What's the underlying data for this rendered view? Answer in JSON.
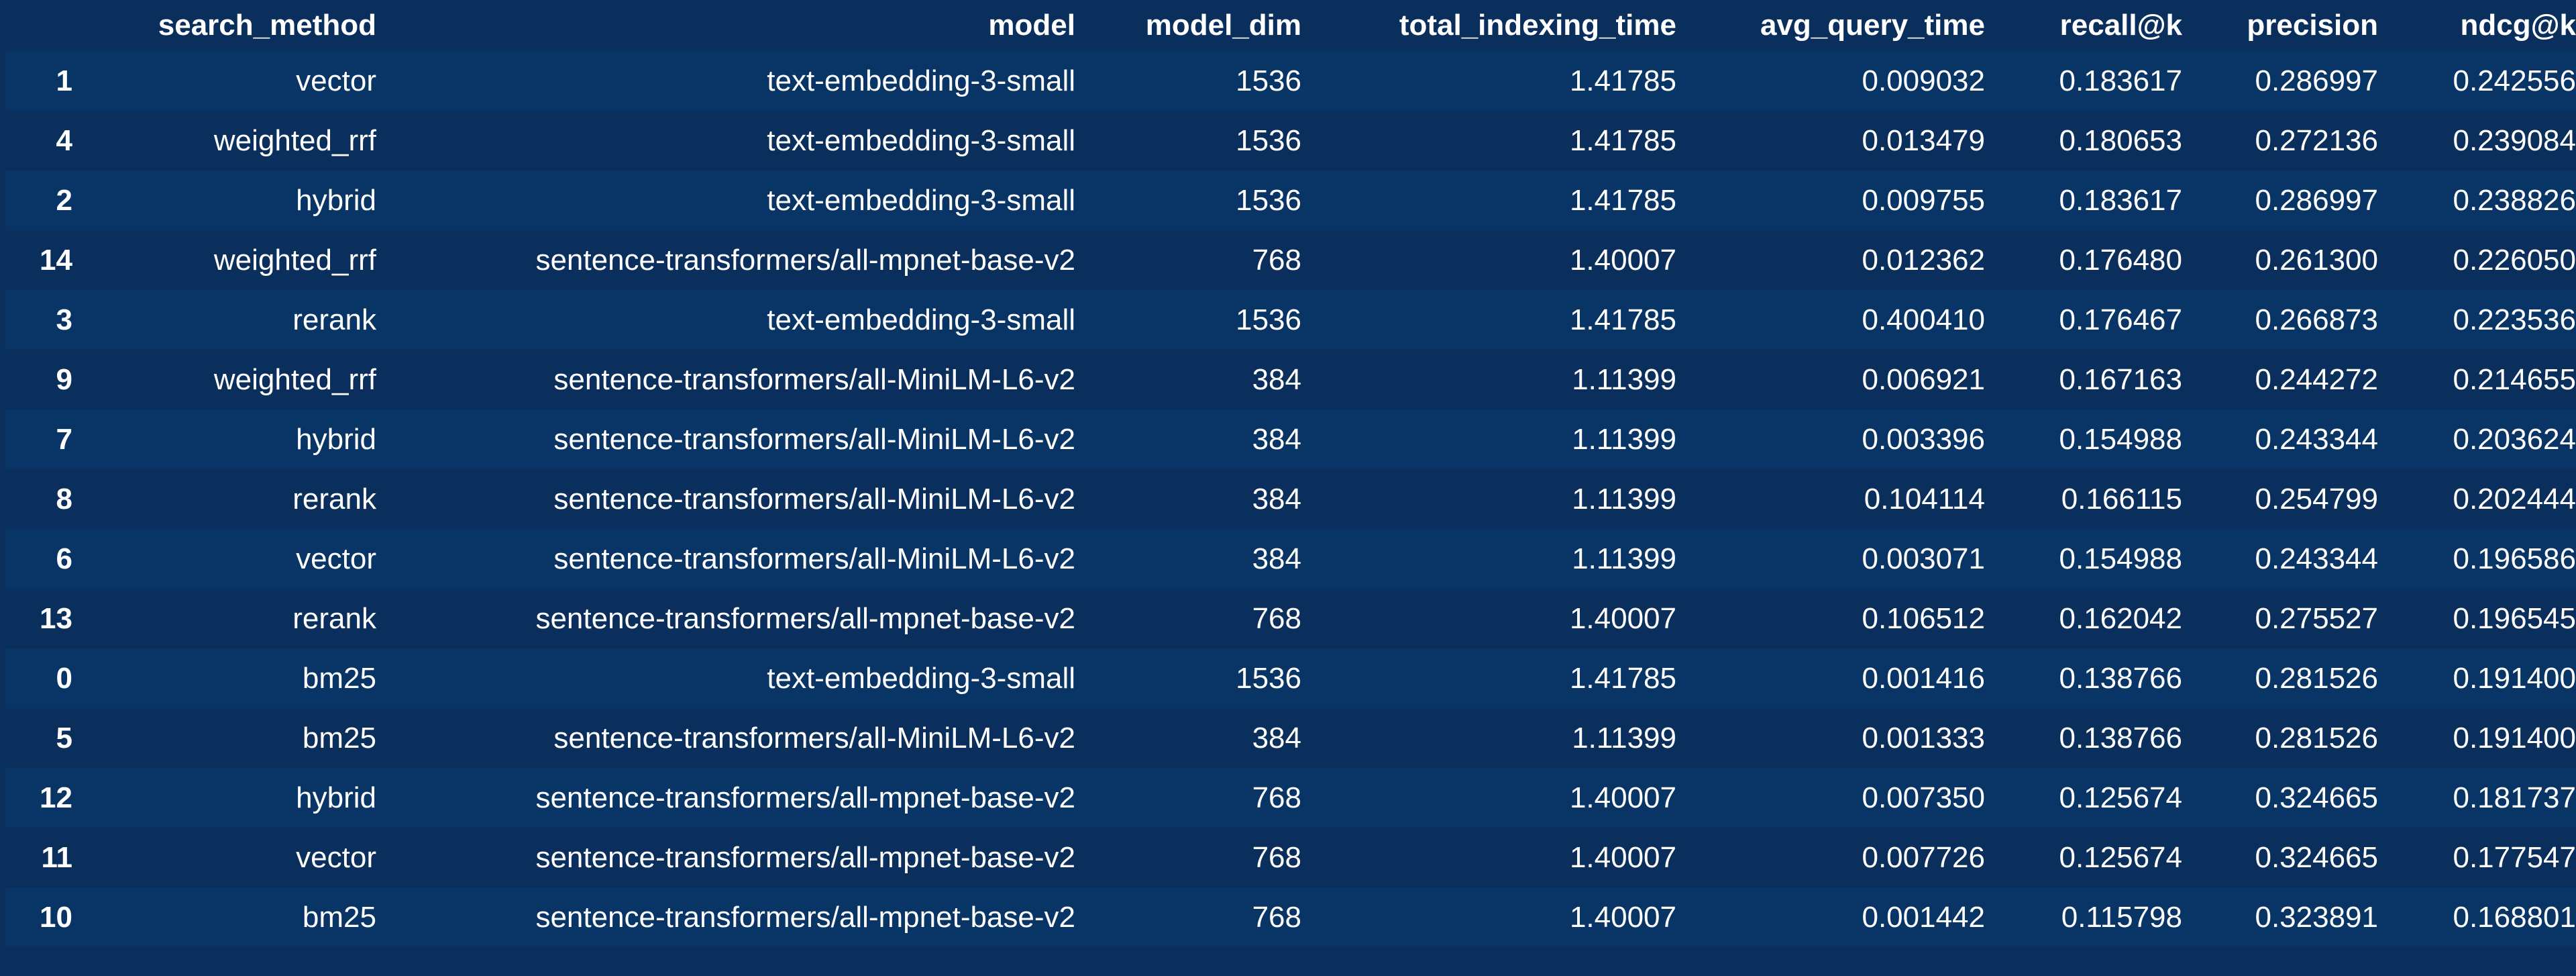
{
  "table": {
    "columns": [
      "",
      "search_method",
      "model",
      "model_dim",
      "total_indexing_time",
      "avg_query_time",
      "recall@k",
      "precision",
      "ndcg@k"
    ],
    "rows": [
      [
        "1",
        "vector",
        "text-embedding-3-small",
        "1536",
        "1.41785",
        "0.009032",
        "0.183617",
        "0.286997",
        "0.242556"
      ],
      [
        "4",
        "weighted_rrf",
        "text-embedding-3-small",
        "1536",
        "1.41785",
        "0.013479",
        "0.180653",
        "0.272136",
        "0.239084"
      ],
      [
        "2",
        "hybrid",
        "text-embedding-3-small",
        "1536",
        "1.41785",
        "0.009755",
        "0.183617",
        "0.286997",
        "0.238826"
      ],
      [
        "14",
        "weighted_rrf",
        "sentence-transformers/all-mpnet-base-v2",
        "768",
        "1.40007",
        "0.012362",
        "0.176480",
        "0.261300",
        "0.226050"
      ],
      [
        "3",
        "rerank",
        "text-embedding-3-small",
        "1536",
        "1.41785",
        "0.400410",
        "0.176467",
        "0.266873",
        "0.223536"
      ],
      [
        "9",
        "weighted_rrf",
        "sentence-transformers/all-MiniLM-L6-v2",
        "384",
        "1.11399",
        "0.006921",
        "0.167163",
        "0.244272",
        "0.214655"
      ],
      [
        "7",
        "hybrid",
        "sentence-transformers/all-MiniLM-L6-v2",
        "384",
        "1.11399",
        "0.003396",
        "0.154988",
        "0.243344",
        "0.203624"
      ],
      [
        "8",
        "rerank",
        "sentence-transformers/all-MiniLM-L6-v2",
        "384",
        "1.11399",
        "0.104114",
        "0.166115",
        "0.254799",
        "0.202444"
      ],
      [
        "6",
        "vector",
        "sentence-transformers/all-MiniLM-L6-v2",
        "384",
        "1.11399",
        "0.003071",
        "0.154988",
        "0.243344",
        "0.196586"
      ],
      [
        "13",
        "rerank",
        "sentence-transformers/all-mpnet-base-v2",
        "768",
        "1.40007",
        "0.106512",
        "0.162042",
        "0.275527",
        "0.196545"
      ],
      [
        "0",
        "bm25",
        "text-embedding-3-small",
        "1536",
        "1.41785",
        "0.001416",
        "0.138766",
        "0.281526",
        "0.191400"
      ],
      [
        "5",
        "bm25",
        "sentence-transformers/all-MiniLM-L6-v2",
        "384",
        "1.11399",
        "0.001333",
        "0.138766",
        "0.281526",
        "0.191400"
      ],
      [
        "12",
        "hybrid",
        "sentence-transformers/all-mpnet-base-v2",
        "768",
        "1.40007",
        "0.007350",
        "0.125674",
        "0.324665",
        "0.181737"
      ],
      [
        "11",
        "vector",
        "sentence-transformers/all-mpnet-base-v2",
        "768",
        "1.40007",
        "0.007726",
        "0.125674",
        "0.324665",
        "0.177547"
      ],
      [
        "10",
        "bm25",
        "sentence-transformers/all-mpnet-base-v2",
        "768",
        "1.40007",
        "0.001442",
        "0.115798",
        "0.323891",
        "0.168801"
      ]
    ]
  },
  "colors": {
    "background": "#0a2f5d",
    "row_stripe": "#083566",
    "text": "#ffffff"
  }
}
